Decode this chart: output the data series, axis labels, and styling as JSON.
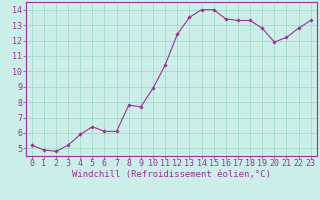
{
  "x": [
    0,
    1,
    2,
    3,
    4,
    5,
    6,
    7,
    8,
    9,
    10,
    11,
    12,
    13,
    14,
    15,
    16,
    17,
    18,
    19,
    20,
    21,
    22,
    23
  ],
  "y": [
    5.2,
    4.9,
    4.8,
    5.2,
    5.9,
    6.4,
    6.1,
    6.1,
    7.8,
    7.7,
    8.9,
    10.4,
    12.4,
    13.5,
    14.0,
    14.0,
    13.4,
    13.3,
    13.3,
    12.8,
    11.9,
    12.2,
    12.8,
    13.3
  ],
  "line_color": "#993399",
  "marker": "D",
  "marker_size": 1.8,
  "bg_color": "#cceee8",
  "grid_color": "#aaddcc",
  "xlabel": "Windchill (Refroidissement éolien,°C)",
  "ylabel": "",
  "xlim": [
    -0.5,
    23.5
  ],
  "ylim": [
    4.5,
    14.5
  ],
  "yticks": [
    5,
    6,
    7,
    8,
    9,
    10,
    11,
    12,
    13,
    14
  ],
  "xticks": [
    0,
    1,
    2,
    3,
    4,
    5,
    6,
    7,
    8,
    9,
    10,
    11,
    12,
    13,
    14,
    15,
    16,
    17,
    18,
    19,
    20,
    21,
    22,
    23
  ],
  "title_color": "#993399",
  "axis_color": "#993399",
  "tick_color": "#993399",
  "label_fontsize": 6,
  "tick_fontsize": 6,
  "xlabel_fontsize": 6.5
}
